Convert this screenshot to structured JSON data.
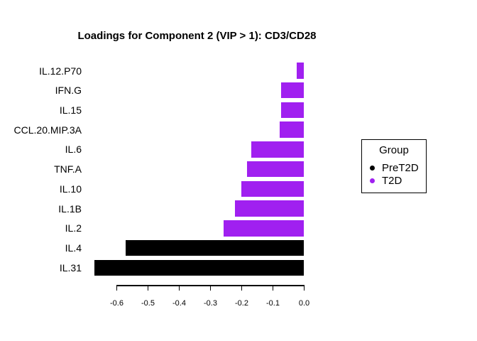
{
  "window": {
    "background": "#ffffff"
  },
  "chart_data": {
    "type": "bar",
    "orientation": "horizontal",
    "title": "Loadings for Component 2 (VIP > 1): CD3/CD28",
    "categories": [
      "IL.12.P70",
      "IFN.G",
      "IL.15",
      "CCL.20.MIP.3A",
      "IL.6",
      "TNF.A",
      "IL.10",
      "IL.1B",
      "IL.2",
      "IL.4",
      "IL.31"
    ],
    "values": [
      -0.024,
      -0.074,
      -0.074,
      -0.078,
      -0.17,
      -0.183,
      -0.202,
      -0.222,
      -0.257,
      -0.571,
      -0.671
    ],
    "groups": [
      "T2D",
      "T2D",
      "T2D",
      "T2D",
      "T2D",
      "T2D",
      "T2D",
      "T2D",
      "T2D",
      "PreT2D",
      "PreT2D"
    ],
    "group_colors": {
      "PreT2D": "#000000",
      "T2D": "#A020F0"
    },
    "xlabel": "",
    "ylabel": "",
    "xlim": [
      -0.7,
      0.0
    ],
    "x_ticks": [
      -0.6,
      -0.5,
      -0.4,
      -0.3,
      -0.2,
      -0.1,
      0.0
    ],
    "x_tick_labels": [
      "-0.6",
      "-0.5",
      "-0.4",
      "-0.3",
      "-0.2",
      "-0.1",
      "0.0"
    ],
    "grid": false,
    "legend": {
      "title": "Group",
      "position": "right",
      "items": [
        {
          "label": "PreT2D",
          "color": "#000000"
        },
        {
          "label": "T2D",
          "color": "#A020F0"
        }
      ]
    }
  }
}
